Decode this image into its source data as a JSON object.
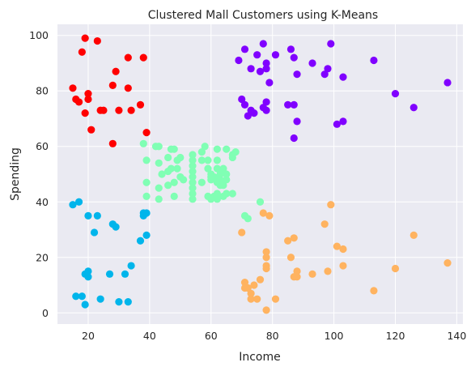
{
  "chart_data": {
    "type": "scatter",
    "title": "Clustered Mall Customers using K-Means",
    "xlabel": "Income",
    "ylabel": "Spending",
    "xlim": [
      10,
      142
    ],
    "ylim": [
      -4,
      104
    ],
    "xticks": [
      "20",
      "40",
      "60",
      "80",
      "100",
      "120",
      "140"
    ],
    "yticks": [
      "0",
      "20",
      "40",
      "60",
      "80",
      "100"
    ],
    "grid": true,
    "legend": "none",
    "series": [
      {
        "color": "#ff0000",
        "points": [
          [
            15,
            81
          ],
          [
            16,
            77
          ],
          [
            17,
            76
          ],
          [
            18,
            94
          ],
          [
            19,
            99
          ],
          [
            19,
            72
          ],
          [
            20,
            77
          ],
          [
            20,
            79
          ],
          [
            21,
            66
          ],
          [
            23,
            98
          ],
          [
            24,
            73
          ],
          [
            25,
            73
          ],
          [
            28,
            82
          ],
          [
            28,
            61
          ],
          [
            29,
            87
          ],
          [
            30,
            73
          ],
          [
            33,
            92
          ],
          [
            33,
            81
          ],
          [
            34,
            73
          ],
          [
            37,
            75
          ],
          [
            38,
            92
          ],
          [
            39,
            65
          ]
        ]
      },
      {
        "color": "#8000ff",
        "points": [
          [
            69,
            91
          ],
          [
            70,
            77
          ],
          [
            71,
            95
          ],
          [
            71,
            75
          ],
          [
            72,
            71
          ],
          [
            73,
            88
          ],
          [
            73,
            73
          ],
          [
            74,
            72
          ],
          [
            75,
            93
          ],
          [
            76,
            87
          ],
          [
            77,
            97
          ],
          [
            77,
            74
          ],
          [
            78,
            90
          ],
          [
            78,
            88
          ],
          [
            78,
            76
          ],
          [
            78,
            73
          ],
          [
            79,
            83
          ],
          [
            81,
            93
          ],
          [
            85,
            75
          ],
          [
            86,
            95
          ],
          [
            87,
            92
          ],
          [
            87,
            75
          ],
          [
            87,
            63
          ],
          [
            88,
            69
          ],
          [
            88,
            86
          ],
          [
            93,
            90
          ],
          [
            97,
            86
          ],
          [
            98,
            88
          ],
          [
            99,
            97
          ],
          [
            101,
            68
          ],
          [
            103,
            69
          ],
          [
            103,
            85
          ],
          [
            113,
            91
          ],
          [
            120,
            79
          ],
          [
            126,
            74
          ],
          [
            137,
            83
          ]
        ]
      },
      {
        "color": "#80ffb4",
        "points": [
          [
            38,
            61
          ],
          [
            39,
            55
          ],
          [
            39,
            47
          ],
          [
            39,
            42
          ],
          [
            42,
            60
          ],
          [
            43,
            60
          ],
          [
            43,
            54
          ],
          [
            43,
            45
          ],
          [
            43,
            41
          ],
          [
            44,
            50
          ],
          [
            46,
            56
          ],
          [
            46,
            51
          ],
          [
            46,
            46
          ],
          [
            47,
            59
          ],
          [
            47,
            52
          ],
          [
            48,
            59
          ],
          [
            48,
            47
          ],
          [
            48,
            42
          ],
          [
            49,
            55
          ],
          [
            49,
            52
          ],
          [
            50,
            49
          ],
          [
            50,
            56
          ],
          [
            51,
            48
          ],
          [
            54,
            57
          ],
          [
            54,
            55
          ],
          [
            54,
            53
          ],
          [
            54,
            51
          ],
          [
            54,
            49
          ],
          [
            54,
            47
          ],
          [
            54,
            45
          ],
          [
            54,
            43
          ],
          [
            54,
            41
          ],
          [
            57,
            58
          ],
          [
            57,
            55
          ],
          [
            57,
            47
          ],
          [
            58,
            60
          ],
          [
            59,
            55
          ],
          [
            59,
            52
          ],
          [
            59,
            42
          ],
          [
            60,
            50
          ],
          [
            60,
            49
          ],
          [
            60,
            41
          ],
          [
            60,
            48
          ],
          [
            61,
            49
          ],
          [
            61,
            42
          ],
          [
            62,
            59
          ],
          [
            62,
            55
          ],
          [
            62,
            52
          ],
          [
            62,
            47
          ],
          [
            62,
            43
          ],
          [
            62,
            41
          ],
          [
            63,
            50
          ],
          [
            63,
            48
          ],
          [
            63,
            46
          ],
          [
            64,
            52
          ],
          [
            64,
            46
          ],
          [
            64,
            42
          ],
          [
            65,
            59
          ],
          [
            65,
            50
          ],
          [
            65,
            48
          ],
          [
            65,
            43
          ],
          [
            67,
            56
          ],
          [
            67,
            57
          ],
          [
            67,
            43
          ],
          [
            68,
            58
          ],
          [
            71,
            35
          ],
          [
            72,
            34
          ],
          [
            76,
            40
          ]
        ]
      },
      {
        "color": "#00b5eb",
        "points": [
          [
            15,
            39
          ],
          [
            16,
            6
          ],
          [
            17,
            40
          ],
          [
            18,
            6
          ],
          [
            19,
            3
          ],
          [
            19,
            14
          ],
          [
            20,
            15
          ],
          [
            20,
            13
          ],
          [
            20,
            35
          ],
          [
            22,
            29
          ],
          [
            23,
            35
          ],
          [
            24,
            5
          ],
          [
            27,
            14
          ],
          [
            28,
            32
          ],
          [
            29,
            31
          ],
          [
            30,
            4
          ],
          [
            32,
            14
          ],
          [
            33,
            4
          ],
          [
            34,
            17
          ],
          [
            37,
            26
          ],
          [
            38,
            35
          ],
          [
            38,
            36
          ],
          [
            39,
            28
          ],
          [
            39,
            36
          ]
        ]
      },
      {
        "color": "#ffb360",
        "points": [
          [
            70,
            29
          ],
          [
            71,
            11
          ],
          [
            71,
            9
          ],
          [
            72,
            9
          ],
          [
            73,
            7
          ],
          [
            73,
            5
          ],
          [
            74,
            10
          ],
          [
            75,
            5
          ],
          [
            76,
            12
          ],
          [
            77,
            36
          ],
          [
            78,
            1
          ],
          [
            78,
            22
          ],
          [
            78,
            20
          ],
          [
            78,
            17
          ],
          [
            78,
            16
          ],
          [
            79,
            35
          ],
          [
            81,
            5
          ],
          [
            85,
            26
          ],
          [
            86,
            20
          ],
          [
            87,
            27
          ],
          [
            87,
            13
          ],
          [
            88,
            13
          ],
          [
            88,
            15
          ],
          [
            93,
            14
          ],
          [
            97,
            32
          ],
          [
            98,
            15
          ],
          [
            99,
            39
          ],
          [
            101,
            24
          ],
          [
            103,
            17
          ],
          [
            103,
            23
          ],
          [
            113,
            8
          ],
          [
            120,
            16
          ],
          [
            126,
            28
          ],
          [
            137,
            18
          ]
        ]
      }
    ]
  }
}
